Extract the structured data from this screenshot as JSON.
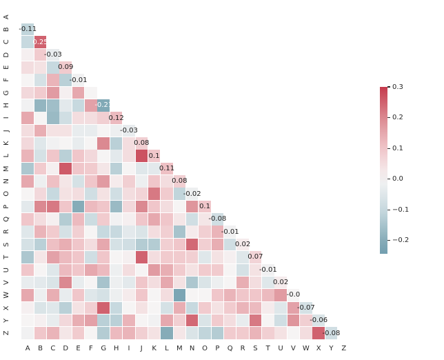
{
  "chart_data": {
    "type": "heatmap",
    "title": "",
    "xlabel": "",
    "ylabel": "",
    "x_categories": [
      "A",
      "B",
      "C",
      "D",
      "E",
      "F",
      "G",
      "H",
      "I",
      "J",
      "K",
      "L",
      "M",
      "N",
      "O",
      "P",
      "Q",
      "R",
      "S",
      "T",
      "U",
      "V",
      "W",
      "X",
      "Y",
      "Z"
    ],
    "y_categories": [
      "A",
      "B",
      "C",
      "D",
      "E",
      "F",
      "G",
      "H",
      "I",
      "J",
      "K",
      "L",
      "M",
      "N",
      "O",
      "P",
      "Q",
      "R",
      "S",
      "T",
      "U",
      "V",
      "W",
      "X",
      "Y",
      "Z"
    ],
    "mask": "upper triangle including diagonal; row A and column Z empty",
    "grid": "white gaps between cells, no axis spines, no tick marks on heatmap axes",
    "rows": [
      {
        "label": "A",
        "values": []
      },
      {
        "label": "B",
        "values": [
          -0.11
        ]
      },
      {
        "label": "C",
        "values": [
          -0.1,
          0.25
        ]
      },
      {
        "label": "D",
        "values": [
          0.01,
          0.09,
          -0.03
        ]
      },
      {
        "label": "E",
        "values": [
          0.05,
          0.04,
          -0.1,
          0.09
        ]
      },
      {
        "label": "F",
        "values": [
          0.0,
          -0.07,
          0.13,
          -0.12,
          -0.01
        ]
      },
      {
        "label": "G",
        "values": [
          0.06,
          0.09,
          0.17,
          0.01,
          0.15,
          0.0
        ]
      },
      {
        "label": "H",
        "values": [
          -0.01,
          -0.18,
          -0.16,
          -0.04,
          -0.1,
          0.16,
          -0.21
        ]
      },
      {
        "label": "I",
        "values": [
          0.15,
          0.0,
          -0.17,
          -0.08,
          0.05,
          0.05,
          0.08,
          0.12
        ]
      },
      {
        "label": "J",
        "values": [
          0.05,
          0.14,
          0.04,
          0.04,
          -0.03,
          -0.03,
          0.0,
          -0.02,
          -0.03
        ]
      },
      {
        "label": "K",
        "values": [
          0.06,
          -0.05,
          -0.01,
          0.0,
          -0.03,
          0.0,
          0.2,
          -0.12,
          0.05,
          0.08
        ]
      },
      {
        "label": "L",
        "values": [
          0.13,
          -0.07,
          0.1,
          -0.12,
          0.1,
          0.06,
          0.0,
          -0.04,
          0.05,
          0.27,
          0.1
        ]
      },
      {
        "label": "M",
        "values": [
          -0.14,
          0.09,
          0.01,
          0.26,
          0.1,
          0.09,
          0.03,
          -0.12,
          0.0,
          -0.05,
          -0.04,
          0.11
        ]
      },
      {
        "label": "N",
        "values": [
          0.15,
          -0.02,
          0.11,
          0.03,
          -0.07,
          0.1,
          0.17,
          0.02,
          0.08,
          -0.02,
          0.1,
          0.05,
          0.08
        ]
      },
      {
        "label": "O",
        "values": [
          0.0,
          0.06,
          -0.1,
          0.04,
          0.05,
          -0.08,
          0.04,
          -0.08,
          0.05,
          0.07,
          0.22,
          0.09,
          -0.11,
          -0.02
        ]
      },
      {
        "label": "P",
        "values": [
          -0.04,
          0.2,
          0.22,
          0.1,
          -0.2,
          0.12,
          0.1,
          -0.17,
          0.06,
          0.2,
          0.1,
          0.05,
          0.0,
          0.18,
          0.1
        ]
      },
      {
        "label": "Q",
        "values": [
          0.1,
          0.05,
          0.01,
          -0.13,
          0.12,
          -0.09,
          0.09,
          -0.01,
          0.01,
          0.1,
          0.15,
          0.1,
          0.03,
          -0.08,
          0.03,
          -0.08
        ]
      },
      {
        "label": "R",
        "values": [
          -0.05,
          0.13,
          0.09,
          -0.07,
          0.08,
          0.0,
          -0.1,
          -0.1,
          -0.04,
          -0.06,
          0.05,
          0.08,
          -0.15,
          0.02,
          0.08,
          0.13,
          -0.01
        ]
      },
      {
        "label": "S",
        "values": [
          -0.07,
          -0.12,
          0.11,
          0.14,
          0.1,
          0.05,
          0.15,
          -0.07,
          -0.08,
          -0.13,
          -0.13,
          0.08,
          0.1,
          0.24,
          0.08,
          0.14,
          -0.08,
          0.02
        ]
      },
      {
        "label": "T",
        "values": [
          -0.14,
          0.03,
          0.16,
          0.12,
          0.1,
          -0.08,
          0.1,
          0.0,
          0.01,
          0.25,
          0.05,
          0.09,
          0.09,
          0.08,
          -0.05,
          0.04,
          0.01,
          -0.05,
          0.07
        ]
      },
      {
        "label": "U",
        "values": [
          0.1,
          0.0,
          -0.05,
          0.12,
          0.1,
          0.15,
          0.12,
          -0.02,
          0.05,
          0.0,
          0.17,
          0.14,
          0.09,
          0.04,
          0.09,
          0.09,
          0.0,
          -0.07,
          0.04,
          -0.01
        ]
      },
      {
        "label": "V",
        "values": [
          -0.03,
          -0.04,
          -0.06,
          0.2,
          -0.03,
          0.0,
          -0.15,
          -0.02,
          -0.04,
          0.1,
          0.05,
          0.15,
          0.04,
          -0.14,
          -0.06,
          -0.02,
          0.0,
          0.14,
          0.05,
          -0.05,
          0.02
        ]
      },
      {
        "label": "W",
        "values": [
          0.15,
          -0.02,
          0.14,
          -0.03,
          0.1,
          -0.05,
          -0.07,
          -0.02,
          0.02,
          0.1,
          0.0,
          0.05,
          -0.22,
          0.0,
          0.0,
          0.1,
          0.13,
          0.1,
          0.1,
          0.12,
          0.17,
          -0.0
        ]
      },
      {
        "label": "X",
        "values": [
          0.01,
          -0.06,
          -0.05,
          -0.12,
          0.04,
          0.08,
          0.25,
          -0.1,
          0.0,
          0.04,
          0.0,
          -0.07,
          0.14,
          -0.1,
          0.09,
          0.04,
          0.09,
          0.13,
          0.12,
          0.02,
          -0.05,
          0.16,
          -0.07
        ]
      },
      {
        "label": "Y",
        "values": [
          0.0,
          0.01,
          -0.03,
          0.06,
          0.14,
          0.16,
          -0.12,
          -0.12,
          0.13,
          0.0,
          -0.01,
          0.15,
          0.08,
          0.24,
          -0.06,
          0.09,
          0.05,
          -0.03,
          0.22,
          0.0,
          -0.08,
          0.18,
          0.08,
          -0.06
        ]
      },
      {
        "label": "Z",
        "values": [
          -0.01,
          0.1,
          0.13,
          0.03,
          0.09,
          0.0,
          -0.13,
          0.12,
          0.13,
          0.08,
          0.04,
          -0.2,
          0.03,
          -0.06,
          -0.11,
          -0.13,
          0.09,
          0.09,
          0.13,
          0.08,
          0.04,
          0.0,
          0.05,
          0.25,
          -0.08
        ]
      }
    ],
    "annotations": [
      {
        "row": "B",
        "col": "A",
        "text": "-0.11"
      },
      {
        "row": "C",
        "col": "B",
        "text": "0.25"
      },
      {
        "row": "D",
        "col": "C",
        "text": "-0.03"
      },
      {
        "row": "E",
        "col": "D",
        "text": "0.09"
      },
      {
        "row": "F",
        "col": "E",
        "text": "-0.01"
      },
      {
        "row": "H",
        "col": "G",
        "text": "-0.21"
      },
      {
        "row": "I",
        "col": "H",
        "text": "0.12"
      },
      {
        "row": "J",
        "col": "I",
        "text": "-0.03"
      },
      {
        "row": "K",
        "col": "J",
        "text": "0.08"
      },
      {
        "row": "L",
        "col": "K",
        "text": "0.1"
      },
      {
        "row": "M",
        "col": "L",
        "text": "0.11"
      },
      {
        "row": "N",
        "col": "M",
        "text": "0.08"
      },
      {
        "row": "O",
        "col": "N",
        "text": "-0.02"
      },
      {
        "row": "P",
        "col": "O",
        "text": "0.1"
      },
      {
        "row": "Q",
        "col": "P",
        "text": "-0.08"
      },
      {
        "row": "R",
        "col": "Q",
        "text": "-0.01"
      },
      {
        "row": "S",
        "col": "R",
        "text": "0.02"
      },
      {
        "row": "T",
        "col": "S",
        "text": "0.07"
      },
      {
        "row": "U",
        "col": "T",
        "text": "-0.01"
      },
      {
        "row": "V",
        "col": "U",
        "text": "0.02"
      },
      {
        "row": "W",
        "col": "V",
        "text": "-0.0"
      },
      {
        "row": "X",
        "col": "W",
        "text": "-0.07"
      },
      {
        "row": "Y",
        "col": "X",
        "text": "-0.06"
      },
      {
        "row": "Z",
        "col": "Y",
        "text": "-0.08"
      }
    ],
    "colorbar": {
      "position": "right",
      "tick_labels": [
        "0.3",
        "0.2",
        "0.1",
        "0.0",
        "−0.1",
        "−0.2"
      ],
      "tick_values": [
        0.3,
        0.2,
        0.1,
        0.0,
        -0.1,
        -0.2
      ],
      "vmax": 0.3,
      "vmin": -0.242
    },
    "colormap_stops": [
      {
        "value": -0.3,
        "color": "#568ba2"
      },
      {
        "value": -0.2,
        "color": "#86acb8"
      },
      {
        "value": -0.1,
        "color": "#c7d9df"
      },
      {
        "value": 0.0,
        "color": "#f6f4f4"
      },
      {
        "value": 0.1,
        "color": "#f0c6ca"
      },
      {
        "value": 0.2,
        "color": "#db8991"
      },
      {
        "value": 0.3,
        "color": "#c53a4c"
      }
    ],
    "style": {
      "background_color": "#ffffff",
      "tick_text_color": "#262626",
      "annotation_dark_text_color": "#1a1a1a",
      "annotation_light_text_color": "#ffffff"
    }
  }
}
